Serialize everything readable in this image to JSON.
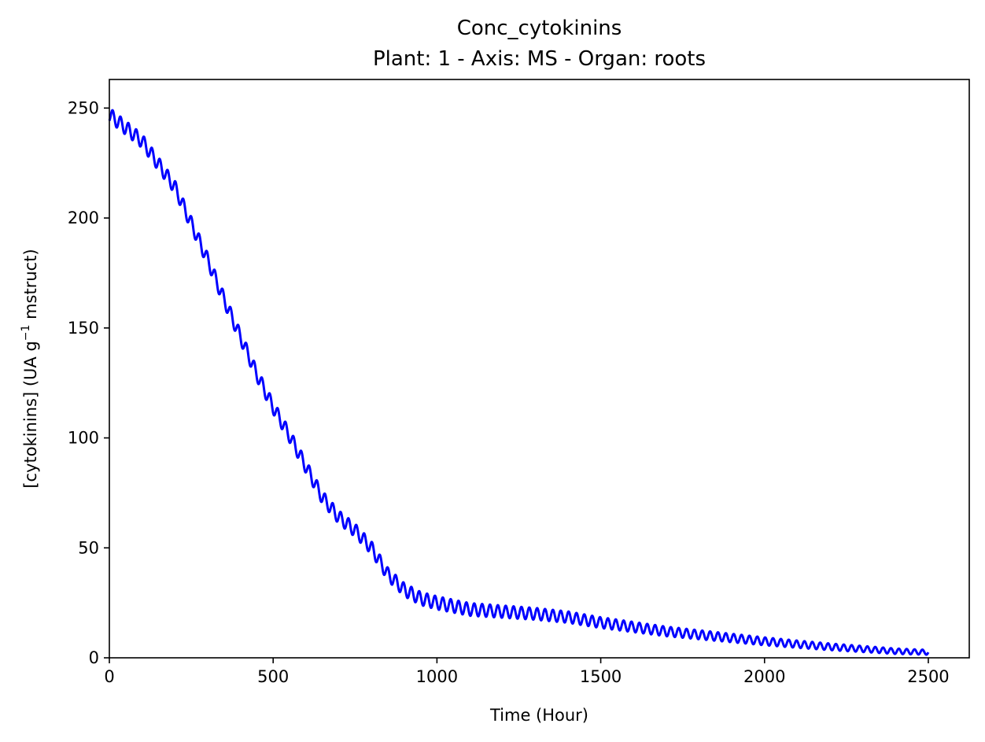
{
  "chart_data": {
    "type": "line",
    "title": "Conc_cytokinins",
    "subtitle": "Plant: 1 - Axis: MS - Organ: roots",
    "xlabel": "Time (Hour)",
    "ylabel_parts": [
      "[cytokinins] (UA g",
      "−1",
      " mstruct)"
    ],
    "xlim": [
      0,
      2625
    ],
    "ylim": [
      0,
      263
    ],
    "xticks": [
      0,
      500,
      1000,
      1500,
      2000,
      2500
    ],
    "yticks": [
      0,
      50,
      100,
      150,
      200,
      250
    ],
    "grid": false,
    "legend": "none",
    "line_color": "#0000ff",
    "series": [
      {
        "oscillation_period_hours": 24,
        "x_end": 2500,
        "trend_x": [
          0,
          100,
          200,
          300,
          350,
          400,
          450,
          500,
          550,
          600,
          650,
          700,
          750,
          800,
          850,
          900,
          950,
          1000,
          1100,
          1200,
          1300,
          1400,
          1500,
          1600,
          1700,
          1800,
          1900,
          2000,
          2100,
          2200,
          2300,
          2400,
          2500
        ],
        "trend_y": [
          247,
          235,
          214,
          181,
          163,
          146,
          129,
          114,
          101,
          87,
          73,
          64,
          58,
          50,
          38,
          31,
          27,
          25,
          22,
          21,
          20,
          18.5,
          16,
          14,
          12,
          10.5,
          9,
          7.5,
          6.2,
          5,
          4,
          3,
          2.5
        ],
        "amplitude_x": [
          0,
          1000,
          1400,
          2000,
          2500
        ],
        "amplitude_y": [
          3.2,
          3.0,
          2.6,
          1.8,
          1.1
        ]
      }
    ]
  }
}
